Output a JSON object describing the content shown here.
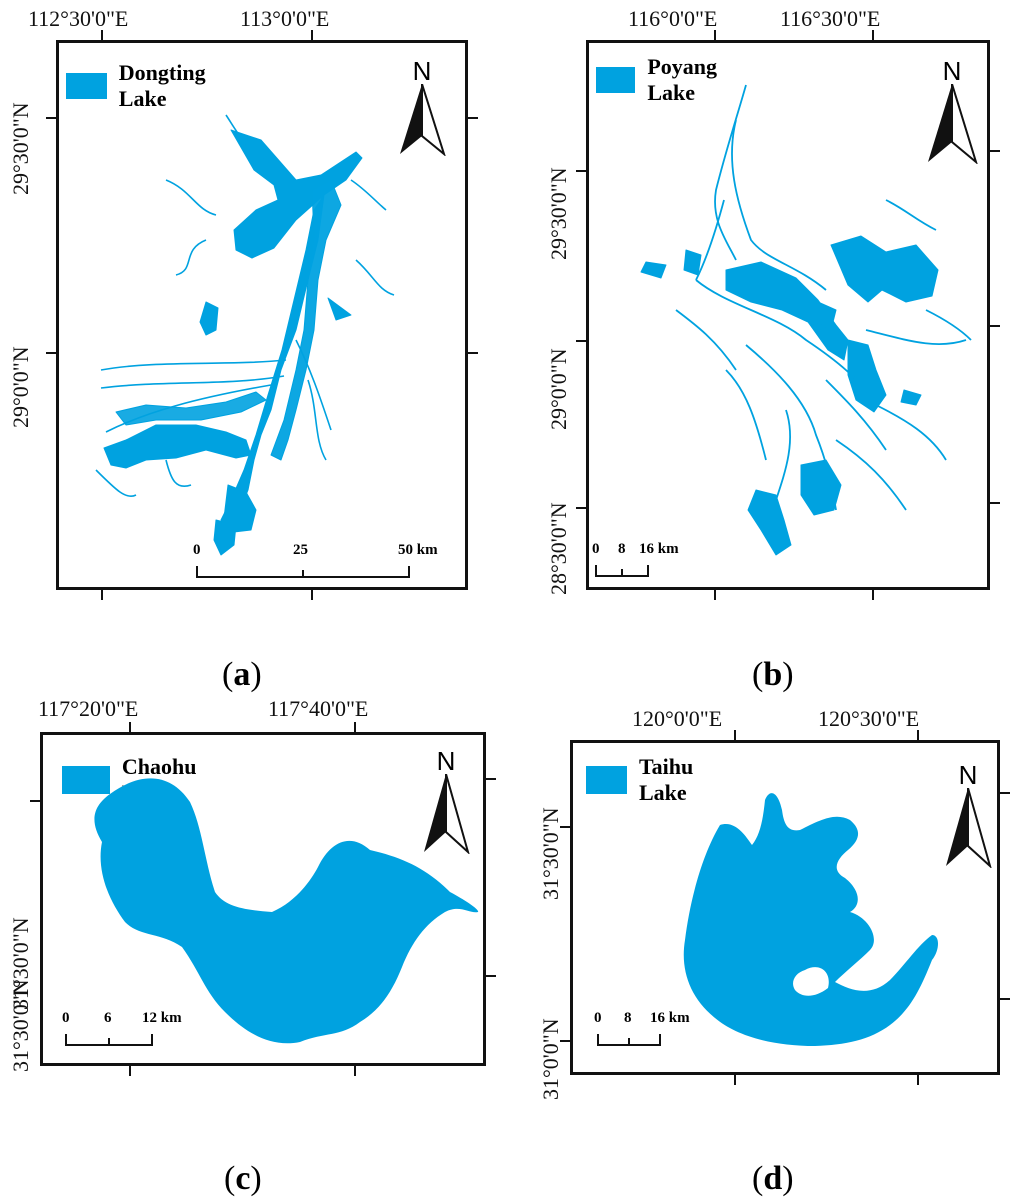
{
  "colors": {
    "water": "#00a2e0",
    "frame": "#111111"
  },
  "panels": {
    "a": {
      "label_letter": "a",
      "legend": "Dongting Lake",
      "north": "N",
      "lon_labels": [
        "112°30'0\"E",
        "113°0'0\"E"
      ],
      "lat_labels": [
        "29°30'0\"N",
        "29°0'0\"N"
      ],
      "scale": [
        "0",
        "25",
        "50 km"
      ]
    },
    "b": {
      "label_letter": "b",
      "legend": "Poyang Lake",
      "north": "N",
      "lon_labels": [
        "116°0'0\"E",
        "116°30'0\"E"
      ],
      "lat_labels": [
        "29°30'0\"N",
        "29°0'0\"N",
        "28°30'0\"N"
      ],
      "scale": [
        "0",
        "8",
        "16 km"
      ]
    },
    "c": {
      "label_letter": "c",
      "legend": "Chaohu Lake",
      "north": "N",
      "lon_labels": [
        "117°20'0\"E",
        "117°40'0\"E"
      ],
      "lat_labels": [
        "31°30'0\"N",
        "31°30'0\"N"
      ],
      "scale": [
        "0",
        "6",
        "12 km"
      ]
    },
    "d": {
      "label_letter": "d",
      "legend": "Taihu Lake",
      "north": "N",
      "lon_labels": [
        "120°0'0\"E",
        "120°30'0\"E"
      ],
      "lat_labels": [
        "31°30'0\"N",
        "31°0'0\"N"
      ],
      "scale": [
        "0",
        "8",
        "16 km"
      ]
    }
  }
}
